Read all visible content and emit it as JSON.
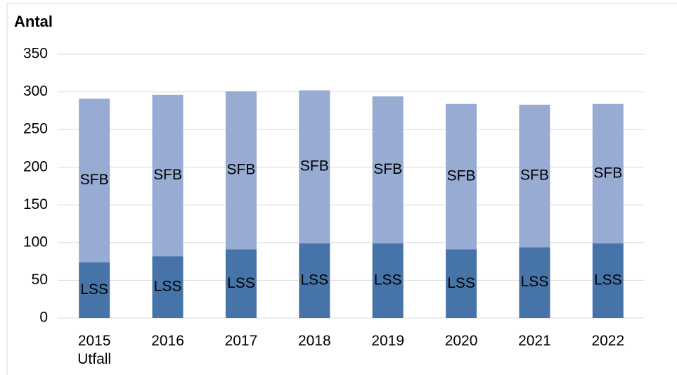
{
  "chart_data": {
    "type": "stacked_bar",
    "title": "Antal",
    "categories": [
      "2015\nUtfall",
      "2016",
      "2017",
      "2018",
      "2019",
      "2020",
      "2021",
      "2022"
    ],
    "series": [
      {
        "name": "LSS",
        "color": "#4774a8",
        "values": [
          74,
          82,
          91,
          99,
          99,
          91,
          94,
          99
        ]
      },
      {
        "name": "SFB",
        "color": "#97abd3",
        "values": [
          217,
          214,
          210,
          203,
          195,
          193,
          189,
          185
        ]
      }
    ],
    "ylim": [
      0,
      350
    ],
    "yticks": [
      0,
      50,
      100,
      150,
      200,
      250,
      300,
      350
    ],
    "grid": true
  }
}
